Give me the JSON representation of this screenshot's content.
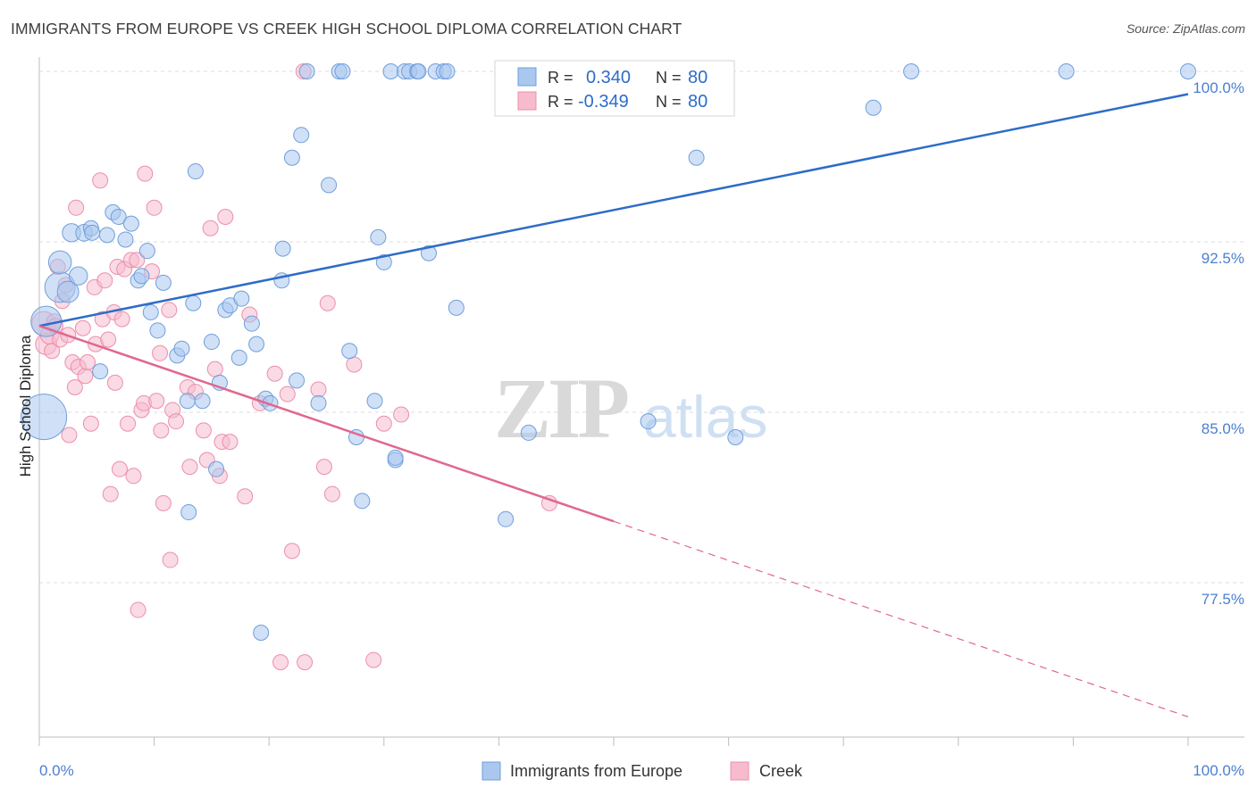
{
  "header": {
    "title": "IMMIGRANTS FROM EUROPE VS CREEK HIGH SCHOOL DIPLOMA CORRELATION CHART",
    "source": "Source: ZipAtlas.com"
  },
  "watermark": {
    "zip": "ZIP",
    "atlas": "atlas"
  },
  "legend": {
    "r_label": "R =",
    "n_label": "N =",
    "rows": [
      {
        "r": "0.340",
        "n": "80"
      },
      {
        "r": "-0.349",
        "n": "80"
      }
    ]
  },
  "colors": {
    "blue_fill": "#aac7ee",
    "blue_stroke": "#6f9fdc",
    "blue_line": "#2d6cc8",
    "pink_fill": "#f6bccd",
    "pink_stroke": "#ec8fab",
    "pink_line": "#e0688f",
    "tick_text": "#4a7fd0",
    "grid": "#dddddd"
  },
  "chart_data": {
    "type": "scatter",
    "title": "IMMIGRANTS FROM EUROPE VS CREEK HIGH SCHOOL DIPLOMA CORRELATION CHART",
    "xlabel": "",
    "ylabel": "High School Diploma",
    "x_tick_labels": [
      "0.0%",
      "100.0%"
    ],
    "y_tick_labels": [
      "77.5%",
      "85.0%",
      "92.5%",
      "100.0%"
    ],
    "xlim": [
      0,
      100
    ],
    "ylim": [
      71.5,
      101.0
    ],
    "y_ticks": [
      77.5,
      85.0,
      92.5,
      100.0
    ],
    "grid": true,
    "legend_position": "top-center",
    "series": [
      {
        "name": "Immigrants from Europe",
        "r": 0.34,
        "n": 80,
        "trend": {
          "x0": 0,
          "y0": 88.8,
          "x1": 100,
          "y1": 99.0
        },
        "points": [
          [
            0.4,
            84.8,
            3.0
          ],
          [
            0.6,
            89.0,
            2.0
          ],
          [
            1.8,
            90.5,
            2.0
          ],
          [
            1.8,
            91.6,
            1.5
          ],
          [
            2.5,
            90.3,
            1.4
          ],
          [
            3.4,
            91.0,
            1.2
          ],
          [
            2.8,
            92.9,
            1.2
          ],
          [
            3.9,
            92.9,
            1.1
          ],
          [
            4.5,
            93.1,
            1.0
          ],
          [
            4.6,
            92.9,
            1.0
          ],
          [
            5.3,
            86.8,
            1.0
          ],
          [
            5.9,
            92.8,
            1.0
          ],
          [
            6.4,
            93.8,
            1.0
          ],
          [
            6.9,
            93.6,
            1.0
          ],
          [
            7.5,
            92.6,
            1.0
          ],
          [
            8.0,
            93.3,
            1.0
          ],
          [
            8.6,
            90.8,
            1.0
          ],
          [
            8.9,
            91.0,
            1.0
          ],
          [
            9.4,
            92.1,
            1.0
          ],
          [
            9.7,
            89.4,
            1.0
          ],
          [
            10.3,
            88.6,
            1.0
          ],
          [
            10.8,
            90.7,
            1.0
          ],
          [
            12.0,
            87.5,
            1.0
          ],
          [
            12.4,
            87.8,
            1.0
          ],
          [
            12.9,
            85.5,
            1.0
          ],
          [
            13.0,
            80.6,
            1.0
          ],
          [
            13.4,
            89.8,
            1.0
          ],
          [
            13.6,
            95.6,
            1.0
          ],
          [
            14.2,
            85.5,
            1.0
          ],
          [
            15.0,
            88.1,
            1.0
          ],
          [
            15.4,
            82.5,
            1.0
          ],
          [
            15.7,
            86.3,
            1.0
          ],
          [
            16.2,
            89.5,
            1.0
          ],
          [
            16.6,
            89.7,
            1.0
          ],
          [
            17.4,
            87.4,
            1.0
          ],
          [
            17.6,
            90.0,
            1.0
          ],
          [
            18.5,
            88.9,
            1.0
          ],
          [
            18.9,
            88.0,
            1.0
          ],
          [
            19.3,
            75.3,
            1.0
          ],
          [
            19.7,
            85.6,
            1.0
          ],
          [
            20.1,
            85.4,
            1.0
          ],
          [
            21.1,
            90.8,
            1.0
          ],
          [
            21.2,
            92.2,
            1.0
          ],
          [
            22.0,
            96.2,
            1.0
          ],
          [
            22.4,
            86.4,
            1.0
          ],
          [
            22.8,
            97.2,
            1.0
          ],
          [
            23.3,
            100.0,
            1.0
          ],
          [
            24.3,
            85.4,
            1.0
          ],
          [
            25.2,
            95.0,
            1.0
          ],
          [
            26.1,
            100.0,
            1.0
          ],
          [
            26.4,
            100.0,
            1.0
          ],
          [
            27.0,
            87.7,
            1.0
          ],
          [
            27.6,
            83.9,
            1.0
          ],
          [
            28.1,
            81.1,
            1.0
          ],
          [
            29.2,
            85.5,
            1.0
          ],
          [
            29.5,
            92.7,
            1.0
          ],
          [
            30.0,
            91.6,
            1.0
          ],
          [
            30.6,
            100.0,
            1.0
          ],
          [
            31.0,
            82.9,
            1.0
          ],
          [
            31.0,
            83.0,
            1.0
          ],
          [
            31.8,
            100.0,
            1.0
          ],
          [
            32.2,
            100.0,
            1.0
          ],
          [
            32.9,
            100.0,
            1.0
          ],
          [
            33.0,
            100.0,
            1.0
          ],
          [
            33.9,
            92.0,
            1.0
          ],
          [
            34.5,
            100.0,
            1.0
          ],
          [
            35.2,
            100.0,
            1.0
          ],
          [
            35.5,
            100.0,
            1.0
          ],
          [
            36.3,
            89.6,
            1.0
          ],
          [
            40.6,
            80.3,
            1.0
          ],
          [
            41.3,
            100.0,
            1.0
          ],
          [
            42.6,
            84.1,
            1.0
          ],
          [
            47.5,
            100.0,
            1.0
          ],
          [
            53.0,
            84.6,
            1.0
          ],
          [
            57.2,
            96.2,
            1.0
          ],
          [
            60.6,
            83.9,
            1.0
          ],
          [
            72.6,
            98.4,
            1.0
          ],
          [
            75.9,
            100.0,
            1.0
          ],
          [
            89.4,
            100.0,
            1.0
          ],
          [
            100.0,
            100.0,
            1.0
          ]
        ]
      },
      {
        "name": "Creek",
        "r": -0.349,
        "n": 80,
        "trend": {
          "x0": 0,
          "y0": 88.8,
          "x1": 50,
          "y1": 80.2,
          "dash_to_x": 100,
          "dash_to_y": 71.6
        },
        "points": [
          [
            0.4,
            88.9,
            1.6
          ],
          [
            0.6,
            88.0,
            1.4
          ],
          [
            0.9,
            88.4,
            1.2
          ],
          [
            1.1,
            87.7,
            1.0
          ],
          [
            1.3,
            89.0,
            1.0
          ],
          [
            1.4,
            88.8,
            1.0
          ],
          [
            1.6,
            91.4,
            1.0
          ],
          [
            1.8,
            88.2,
            1.0
          ],
          [
            2.0,
            89.9,
            1.0
          ],
          [
            2.3,
            90.6,
            1.0
          ],
          [
            2.5,
            88.4,
            1.0
          ],
          [
            2.6,
            84.0,
            1.0
          ],
          [
            2.9,
            87.2,
            1.0
          ],
          [
            3.1,
            86.1,
            1.0
          ],
          [
            3.2,
            94.0,
            1.0
          ],
          [
            3.4,
            87.0,
            1.0
          ],
          [
            3.8,
            88.7,
            1.0
          ],
          [
            4.0,
            86.6,
            1.0
          ],
          [
            4.2,
            87.2,
            1.0
          ],
          [
            4.5,
            84.5,
            1.0
          ],
          [
            4.8,
            90.5,
            1.0
          ],
          [
            4.9,
            88.0,
            1.0
          ],
          [
            5.3,
            95.2,
            1.0
          ],
          [
            5.5,
            89.1,
            1.0
          ],
          [
            5.7,
            90.8,
            1.0
          ],
          [
            6.0,
            88.2,
            1.0
          ],
          [
            6.2,
            81.4,
            1.0
          ],
          [
            6.5,
            89.4,
            1.0
          ],
          [
            6.6,
            86.3,
            1.0
          ],
          [
            6.8,
            91.4,
            1.0
          ],
          [
            7.0,
            82.5,
            1.0
          ],
          [
            7.2,
            89.1,
            1.0
          ],
          [
            7.4,
            91.3,
            1.0
          ],
          [
            7.7,
            84.5,
            1.0
          ],
          [
            8.0,
            91.7,
            1.0
          ],
          [
            8.2,
            82.2,
            1.0
          ],
          [
            8.5,
            91.7,
            1.0
          ],
          [
            8.6,
            76.3,
            1.0
          ],
          [
            8.9,
            85.1,
            1.0
          ],
          [
            9.1,
            85.4,
            1.0
          ],
          [
            9.2,
            95.5,
            1.0
          ],
          [
            9.8,
            91.2,
            1.0
          ],
          [
            10.0,
            94.0,
            1.0
          ],
          [
            10.2,
            85.5,
            1.0
          ],
          [
            10.5,
            87.6,
            1.0
          ],
          [
            10.6,
            84.2,
            1.0
          ],
          [
            10.8,
            81.0,
            1.0
          ],
          [
            11.3,
            89.5,
            1.0
          ],
          [
            11.4,
            78.5,
            1.0
          ],
          [
            11.6,
            85.1,
            1.0
          ],
          [
            11.9,
            84.6,
            1.0
          ],
          [
            12.9,
            86.1,
            1.0
          ],
          [
            13.1,
            82.6,
            1.0
          ],
          [
            13.6,
            85.9,
            1.0
          ],
          [
            14.3,
            84.2,
            1.0
          ],
          [
            14.6,
            82.9,
            1.0
          ],
          [
            14.9,
            93.1,
            1.0
          ],
          [
            15.3,
            86.9,
            1.0
          ],
          [
            15.7,
            82.2,
            1.0
          ],
          [
            15.9,
            83.7,
            1.0
          ],
          [
            16.2,
            93.6,
            1.0
          ],
          [
            16.6,
            83.7,
            1.0
          ],
          [
            17.9,
            81.3,
            1.0
          ],
          [
            18.3,
            89.3,
            1.0
          ],
          [
            19.2,
            85.4,
            1.0
          ],
          [
            20.5,
            86.7,
            1.0
          ],
          [
            21.0,
            74.0,
            1.0
          ],
          [
            21.6,
            85.8,
            1.0
          ],
          [
            22.0,
            78.9,
            1.0
          ],
          [
            23.0,
            100.0,
            1.0
          ],
          [
            23.1,
            74.0,
            1.0
          ],
          [
            24.3,
            86.0,
            1.0
          ],
          [
            24.8,
            82.6,
            1.0
          ],
          [
            25.1,
            89.8,
            1.0
          ],
          [
            25.5,
            81.4,
            1.0
          ],
          [
            27.4,
            87.1,
            1.0
          ],
          [
            29.1,
            74.1,
            1.0
          ],
          [
            30.0,
            84.5,
            1.0
          ],
          [
            31.5,
            84.9,
            1.0
          ],
          [
            44.4,
            81.0,
            1.0
          ]
        ]
      }
    ]
  },
  "footer_legend": {
    "items": [
      "Immigrants from Europe",
      "Creek"
    ]
  }
}
